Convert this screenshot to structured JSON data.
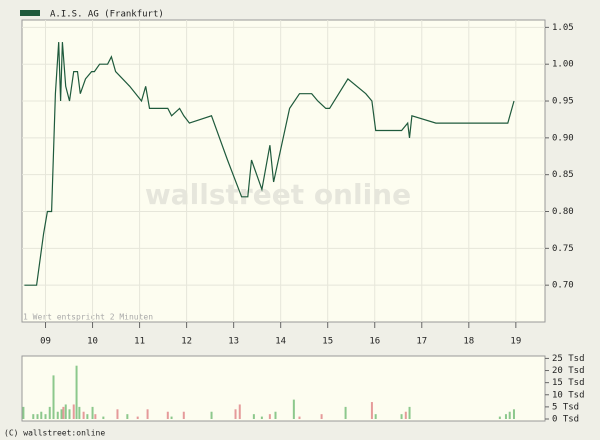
{
  "chart_data": [
    {
      "type": "line",
      "watermark": "wallstreet online",
      "annotation": "1 Wert entspricht 2 Minuten",
      "x": [
        8.55,
        8.81,
        8.96,
        9.04,
        9.13,
        9.21,
        9.28,
        9.32,
        9.36,
        9.43,
        9.51,
        9.6,
        9.68,
        9.74,
        9.85,
        9.98,
        10.04,
        10.15,
        10.32,
        10.4,
        10.49,
        10.79,
        11.04,
        11.13,
        11.21,
        11.6,
        11.68,
        11.85,
        11.94,
        12.06,
        12.53,
        12.87,
        13.17,
        13.3,
        13.38,
        13.6,
        13.77,
        13.85,
        14.19,
        14.4,
        14.66,
        14.79,
        14.96,
        15.04,
        15.43,
        15.81,
        15.94,
        16.02,
        16.57,
        16.7,
        16.74,
        16.79,
        17.3,
        18.83,
        18.96
      ],
      "series": [
        {
          "name": "A.I.S. AG (Frankfurt)",
          "color": "#1f5a3c",
          "values": [
            0.7,
            0.7,
            0.77,
            0.8,
            0.8,
            0.96,
            1.03,
            0.95,
            1.03,
            0.97,
            0.95,
            0.99,
            0.99,
            0.96,
            0.98,
            0.99,
            0.99,
            1.0,
            1.0,
            1.01,
            0.99,
            0.97,
            0.95,
            0.97,
            0.94,
            0.94,
            0.93,
            0.94,
            0.93,
            0.92,
            0.93,
            0.87,
            0.82,
            0.82,
            0.87,
            0.83,
            0.89,
            0.84,
            0.94,
            0.96,
            0.96,
            0.95,
            0.94,
            0.94,
            0.98,
            0.96,
            0.95,
            0.91,
            0.91,
            0.92,
            0.9,
            0.93,
            0.92,
            0.92,
            0.95
          ]
        }
      ],
      "xlim": [
        8.5,
        19.62
      ],
      "xticks": [
        {
          "value": 9,
          "label": "09"
        },
        {
          "value": 10,
          "label": "10"
        },
        {
          "value": 11,
          "label": "11"
        },
        {
          "value": 12,
          "label": "12"
        },
        {
          "value": 13,
          "label": "13"
        },
        {
          "value": 14,
          "label": "14"
        },
        {
          "value": 15,
          "label": "15"
        },
        {
          "value": 16,
          "label": "16"
        },
        {
          "value": 17,
          "label": "17"
        },
        {
          "value": 18,
          "label": "18"
        },
        {
          "value": 19,
          "label": "19"
        }
      ],
      "ylim": [
        0.65,
        1.06
      ],
      "yticks": [
        {
          "value": 0.7,
          "label": "0.70"
        },
        0.75,
        {
          "value": 0.8,
          "label": "0.80"
        },
        0.85,
        {
          "value": 0.9,
          "label": "0.90"
        },
        0.95,
        {
          "value": 1.0,
          "label": "1.00"
        },
        1.05
      ],
      "grid": true
    },
    {
      "type": "bar",
      "x": [
        8.53,
        8.74,
        8.83,
        8.91,
        9.0,
        9.09,
        9.17,
        9.26,
        9.34,
        9.38,
        9.43,
        9.51,
        9.6,
        9.66,
        9.72,
        9.81,
        9.89,
        10.0,
        10.06,
        10.23,
        10.53,
        10.74,
        10.96,
        11.17,
        11.6,
        11.68,
        11.94,
        12.53,
        13.04,
        13.13,
        13.43,
        13.6,
        13.77,
        13.89,
        14.28,
        14.4,
        14.87,
        15.38,
        15.94,
        16.02,
        16.57,
        16.66,
        16.74,
        18.66,
        18.79,
        18.87,
        18.96
      ],
      "values": [
        5,
        2,
        2,
        3,
        2,
        5,
        18,
        3,
        4,
        5,
        6,
        4,
        6,
        22,
        5,
        3,
        2,
        5,
        2,
        1,
        4,
        2,
        1,
        4,
        3,
        1,
        3,
        3,
        4,
        6,
        2,
        1,
        2,
        3,
        8,
        1,
        2,
        5,
        7,
        2,
        2,
        3,
        5,
        1,
        2,
        3,
        4
      ],
      "colors": [
        "#8cc88c",
        "#8cc88c",
        "#8cc88c",
        "#8cc88c",
        "#8cc88c",
        "#8cc88c",
        "#8cc88c",
        "#8cc88c",
        "#8cc88c",
        "#e59a9a",
        "#8cc88c",
        "#8cc88c",
        "#e59a9a",
        "#8cc88c",
        "#8cc88c",
        "#e59a9a",
        "#8cc88c",
        "#8cc88c",
        "#e59a9a",
        "#8cc88c",
        "#e59a9a",
        "#8cc88c",
        "#e59a9a",
        "#e59a9a",
        "#e59a9a",
        "#8cc88c",
        "#e59a9a",
        "#8cc88c",
        "#e59a9a",
        "#e59a9a",
        "#8cc88c",
        "#8cc88c",
        "#e59a9a",
        "#8cc88c",
        "#8cc88c",
        "#e59a9a",
        "#e59a9a",
        "#8cc88c",
        "#e59a9a",
        "#8cc88c",
        "#8cc88c",
        "#e59a9a",
        "#8cc88c",
        "#8cc88c",
        "#8cc88c",
        "#8cc88c",
        "#8cc88c"
      ],
      "xlim": [
        8.5,
        19.62
      ],
      "ylim": [
        0,
        26
      ],
      "yticks": [
        {
          "value": 0,
          "label": "0 Tsd"
        },
        {
          "value": 5,
          "label": "5 Tsd"
        },
        {
          "value": 10,
          "label": "10 Tsd"
        },
        {
          "value": 15,
          "label": "15 Tsd"
        },
        {
          "value": 20,
          "label": "20 Tsd"
        },
        {
          "value": 25,
          "label": "25 Tsd"
        }
      ]
    }
  ],
  "footer": "(C) wallstreet:online"
}
